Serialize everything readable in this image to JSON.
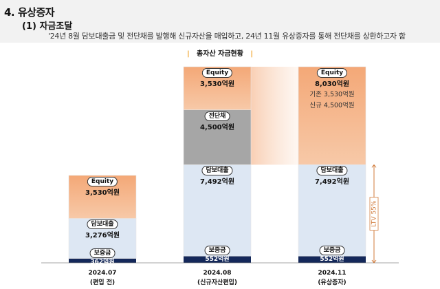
{
  "header": {
    "section_title": "4. 유상증자",
    "sub_title": "(1)  자금조달",
    "description": "'24년 8월 담보대출금 및 전단채를 발행해 신규자산을 매입하고, 24년 11월 유상증자를 통해 전단채를 상환하고자 함"
  },
  "chart_title": "총자산 자금현황",
  "chart_title_bars": [
    "|",
    "|"
  ],
  "ltv_label": "LTV 55%",
  "colors": {
    "equity": "#f7c9a8",
    "equity_top": "#f4a877",
    "loan": "#dde7f3",
    "bond": "#a6a6a6",
    "deposit": "#14285a",
    "ltv": "#d07a3a"
  },
  "chart_data": {
    "type": "bar",
    "stacked": true,
    "unit": "억원",
    "categories": [
      "2024.07",
      "2024.08",
      "2024.11"
    ],
    "category_notes": [
      "(편입 전)",
      "(신규자산편입)",
      "(유상증자)"
    ],
    "series": [
      {
        "name": "보증금",
        "values": [
          362,
          552,
          552
        ],
        "labels": [
          "362억원",
          "552억원",
          "552억원"
        ]
      },
      {
        "name": "담보대출",
        "values": [
          3276,
          7492,
          7492
        ],
        "labels": [
          "3,276억원",
          "7,492억원",
          "7,492억원"
        ]
      },
      {
        "name": "전단채",
        "values": [
          0,
          4500,
          0
        ],
        "labels": [
          "",
          "4,500억원",
          ""
        ]
      },
      {
        "name": "Equity",
        "values": [
          3530,
          3530,
          8030
        ],
        "labels": [
          "3,530억원",
          "3,530억원",
          "8,030억원"
        ]
      }
    ],
    "equity_breakdown": [
      "기존 3,530억원",
      "신규 4,500억원"
    ],
    "ltv": "LTV 55%"
  }
}
